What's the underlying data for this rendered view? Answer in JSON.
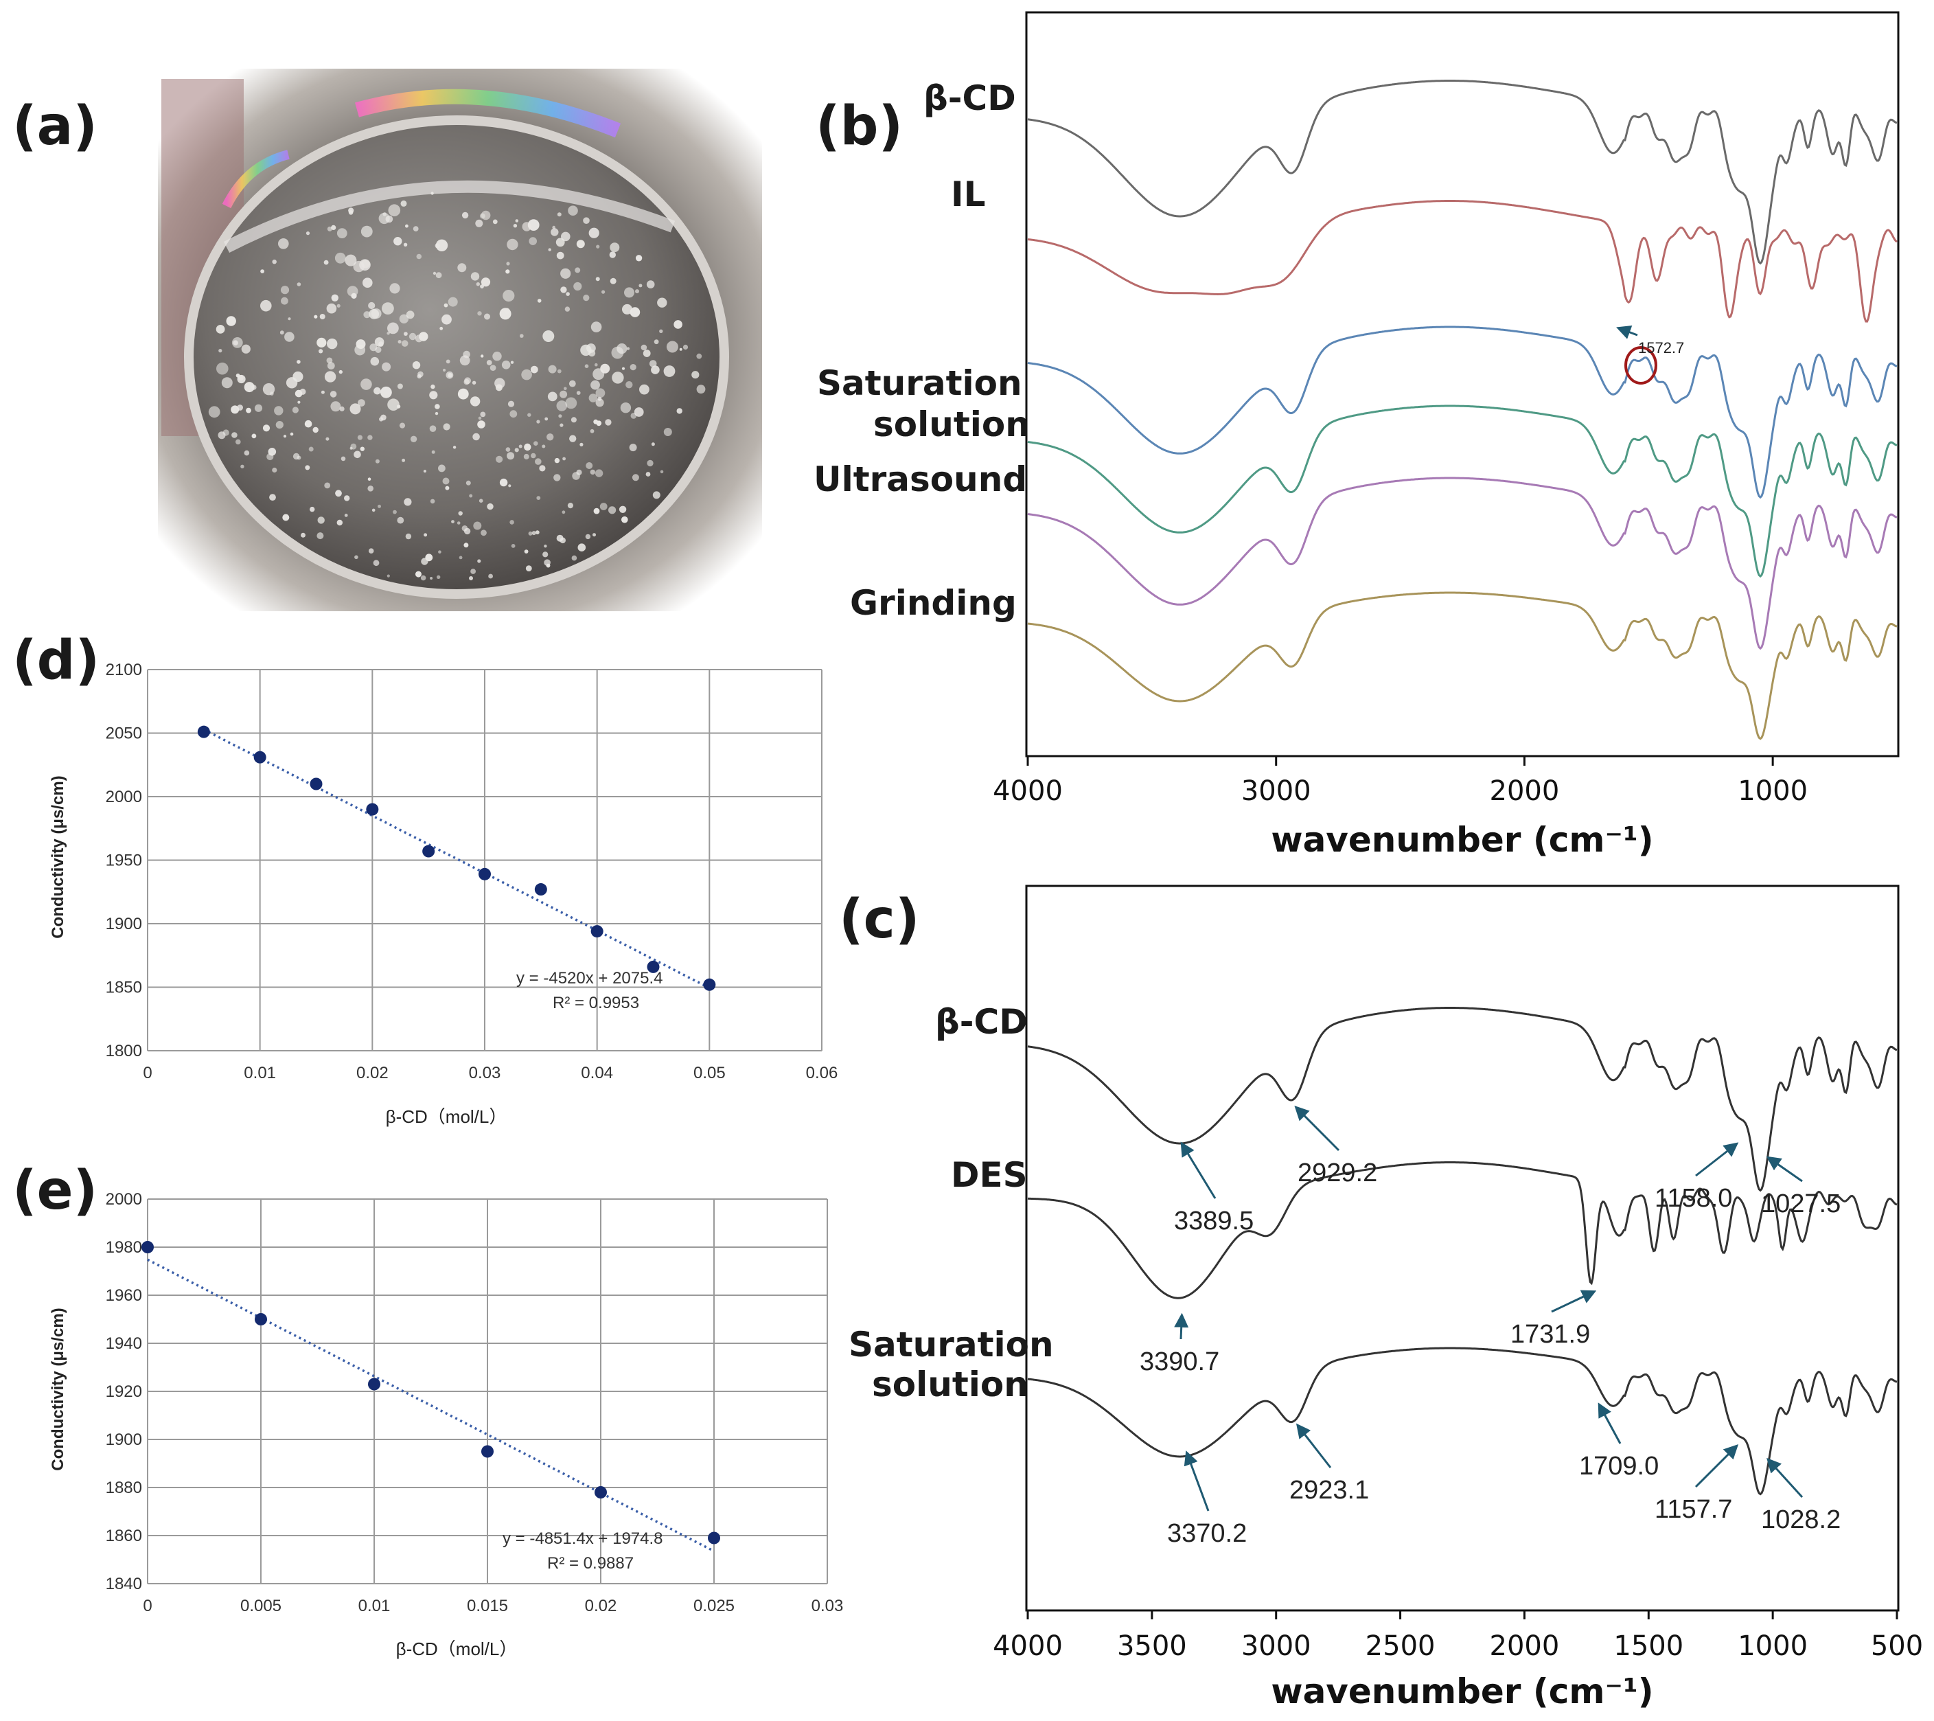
{
  "colors": {
    "beta_cd": "#6a6a6a",
    "il": "#b86a6a",
    "saturation": "#5b86b5",
    "ultrasound": "#4f9a85",
    "grinding_purple": "#a77ab5",
    "grinding_gold": "#a8945a",
    "black_trace": "#333333",
    "arrow": "#1f5a72",
    "circle": "#a01a1a",
    "marker": "#142a6e",
    "trend": "#3a5ea8"
  },
  "panels": {
    "a": {
      "letter": "(a)"
    },
    "b": {
      "letter": "(b)"
    },
    "c": {
      "letter": "(c)"
    },
    "d": {
      "letter": "(d)"
    },
    "e": {
      "letter": "(e)"
    }
  },
  "chart_data": [
    {
      "id": "b",
      "type": "line",
      "xlabel": "wavenumber (cm⁻¹)",
      "xlim": [
        4000,
        500
      ],
      "xticks": [
        "4000",
        "3000",
        "2000",
        "1000"
      ],
      "xtick_values": [
        4000,
        3000,
        2000,
        1000
      ],
      "labels": [
        "β-CD",
        "IL",
        "Saturation",
        "solution",
        "Ultrasound",
        "Grinding"
      ],
      "series": [
        {
          "name": "β-CD",
          "color": "beta_cd"
        },
        {
          "name": "IL",
          "color": "il"
        },
        {
          "name": "Saturation solution",
          "color": "saturation"
        },
        {
          "name": "Ultrasound",
          "color": "ultrasound"
        },
        {
          "name": "",
          "color": "grinding_purple"
        },
        {
          "name": "Grinding",
          "color": "grinding_gold"
        }
      ],
      "annotations": [
        {
          "text": "1572.7",
          "x": 1572.7
        }
      ]
    },
    {
      "id": "c",
      "type": "line",
      "xlabel": "wavenumber (cm⁻¹)",
      "xlim": [
        4000,
        500
      ],
      "xticks": [
        "4000",
        "3500",
        "3000",
        "2500",
        "2000",
        "1500",
        "1000",
        "500"
      ],
      "xtick_values": [
        4000,
        3500,
        3000,
        2500,
        2000,
        1500,
        1000,
        500
      ],
      "labels": [
        "β-CD",
        "DES",
        "Saturation",
        "solution"
      ],
      "series": [
        {
          "name": "β-CD"
        },
        {
          "name": "DES"
        },
        {
          "name": "Saturation solution"
        }
      ],
      "annotations": [
        {
          "text": "3389.5",
          "x": 3389.5
        },
        {
          "text": "2929.2",
          "x": 2929.2
        },
        {
          "text": "1158.0",
          "x": 1158.0
        },
        {
          "text": "1027.5",
          "x": 1027.5
        },
        {
          "text": "3390.7",
          "x": 3390.7
        },
        {
          "text": "1731.9",
          "x": 1731.9
        },
        {
          "text": "3370.2",
          "x": 3370.2
        },
        {
          "text": "2923.1",
          "x": 2923.1
        },
        {
          "text": "1709.0",
          "x": 1709.0
        },
        {
          "text": "1157.7",
          "x": 1157.7
        },
        {
          "text": "1028.2",
          "x": 1028.2
        }
      ]
    },
    {
      "id": "d",
      "type": "scatter",
      "xlabel": "β-CD（mol/L）",
      "ylabel": "Conductivity (μs/cm)",
      "xlim": [
        0,
        0.06
      ],
      "ylim": [
        1800,
        2100
      ],
      "xticks": [
        0,
        0.01,
        0.02,
        0.03,
        0.04,
        0.05,
        0.06
      ],
      "xtick_labels": [
        "0",
        "0.01",
        "0.02",
        "0.03",
        "0.04",
        "0.05",
        "0.06"
      ],
      "yticks": [
        1800,
        1850,
        1900,
        1950,
        2000,
        2050,
        2100
      ],
      "yticks_labels": [
        "1800",
        "1850",
        "1900",
        "1950",
        "2000",
        "2050",
        "2100"
      ],
      "grid": true,
      "x": [
        0.005,
        0.01,
        0.015,
        0.02,
        0.025,
        0.03,
        0.035,
        0.04,
        0.045,
        0.05
      ],
      "y": [
        2051,
        2031,
        2010,
        1990,
        1957,
        1939,
        1927,
        1894,
        1866,
        1852
      ],
      "trendline": {
        "slope": -4520,
        "intercept": 2075.4
      },
      "equation": "y = -4520x + 2075.4",
      "r2": "R² = 0.9953"
    },
    {
      "id": "e",
      "type": "scatter",
      "xlabel": "β-CD（mol/L）",
      "ylabel": "Conductivity (μs/cm)",
      "xlim": [
        0,
        0.03
      ],
      "ylim": [
        1840,
        2000
      ],
      "xticks": [
        0,
        0.005,
        0.01,
        0.015,
        0.02,
        0.025,
        0.03
      ],
      "xtick_labels": [
        "0",
        "0.005",
        "0.01",
        "0.015",
        "0.02",
        "0.025",
        "0.03"
      ],
      "yticks": [
        1840,
        1860,
        1880,
        1900,
        1920,
        1940,
        1960,
        1980,
        2000
      ],
      "yticks_labels": [
        "1840",
        "1860",
        "1880",
        "1900",
        "1920",
        "1940",
        "1960",
        "1980",
        "2000"
      ],
      "grid": true,
      "x": [
        0,
        0.005,
        0.01,
        0.015,
        0.02,
        0.025
      ],
      "y": [
        1980,
        1950,
        1923,
        1895,
        1878,
        1859
      ],
      "trendline": {
        "slope": -4851.4,
        "intercept": 1974.8
      },
      "equation": "y = -4851.4x + 1974.8",
      "r2": "R² = 0.9887"
    }
  ]
}
